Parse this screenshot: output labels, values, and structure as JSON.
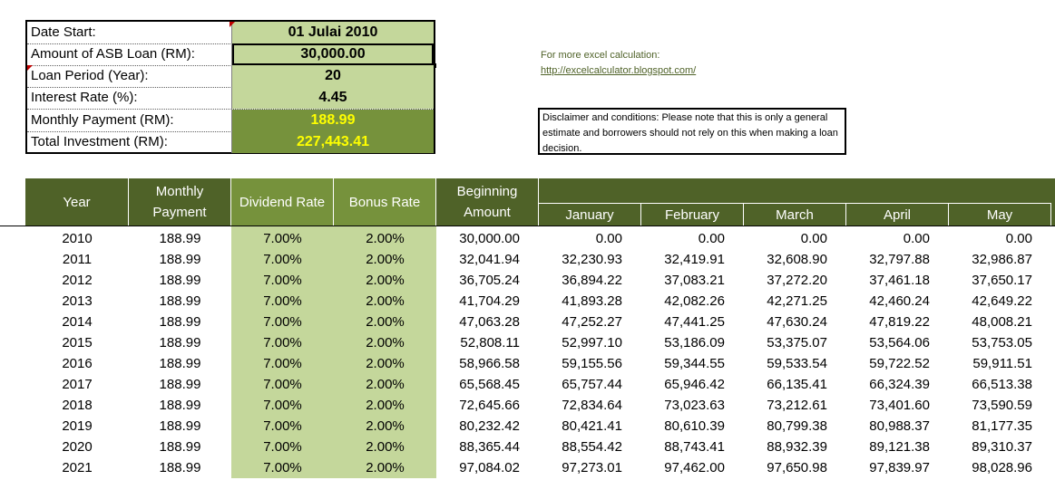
{
  "inputs": [
    {
      "label": "Date Start:",
      "value": "01 Julai 2010"
    },
    {
      "label": "Amount of ASB Loan (RM):",
      "value": "30,000.00"
    },
    {
      "label": "Loan Period (Year):",
      "value": "20"
    },
    {
      "label": "Interest Rate (%):",
      "value": "4.45"
    },
    {
      "label": "Monthly Payment (RM):",
      "value": "188.99"
    },
    {
      "label": "Total Investment (RM):",
      "value": "227,443.41"
    }
  ],
  "info": {
    "line1": "For more excel calculation:",
    "link": "http://excelcalculator.blogspot.com/",
    "disclaimer": "Disclaimer and conditions: Please note that this is only a general estimate and borrowers should not rely on this when making a loan decision."
  },
  "table": {
    "headers": {
      "year": "Year",
      "monthly_payment": "Monthly Payment",
      "dividend_rate": "Dividend Rate",
      "bonus_rate": "Bonus Rate",
      "beginning_amount": "Beginning Amount"
    },
    "months": [
      "January",
      "February",
      "March",
      "April",
      "May"
    ],
    "rows": [
      [
        "2010",
        "188.99",
        "7.00%",
        "2.00%",
        "30,000.00",
        "0.00",
        "0.00",
        "0.00",
        "0.00",
        "0.00"
      ],
      [
        "2011",
        "188.99",
        "7.00%",
        "2.00%",
        "32,041.94",
        "32,230.93",
        "32,419.91",
        "32,608.90",
        "32,797.88",
        "32,986.87"
      ],
      [
        "2012",
        "188.99",
        "7.00%",
        "2.00%",
        "36,705.24",
        "36,894.22",
        "37,083.21",
        "37,272.20",
        "37,461.18",
        "37,650.17"
      ],
      [
        "2013",
        "188.99",
        "7.00%",
        "2.00%",
        "41,704.29",
        "41,893.28",
        "42,082.26",
        "42,271.25",
        "42,460.24",
        "42,649.22"
      ],
      [
        "2014",
        "188.99",
        "7.00%",
        "2.00%",
        "47,063.28",
        "47,252.27",
        "47,441.25",
        "47,630.24",
        "47,819.22",
        "48,008.21"
      ],
      [
        "2015",
        "188.99",
        "7.00%",
        "2.00%",
        "52,808.11",
        "52,997.10",
        "53,186.09",
        "53,375.07",
        "53,564.06",
        "53,753.05"
      ],
      [
        "2016",
        "188.99",
        "7.00%",
        "2.00%",
        "58,966.58",
        "59,155.56",
        "59,344.55",
        "59,533.54",
        "59,722.52",
        "59,911.51"
      ],
      [
        "2017",
        "188.99",
        "7.00%",
        "2.00%",
        "65,568.45",
        "65,757.44",
        "65,946.42",
        "66,135.41",
        "66,324.39",
        "66,513.38"
      ],
      [
        "2018",
        "188.99",
        "7.00%",
        "2.00%",
        "72,645.66",
        "72,834.64",
        "73,023.63",
        "73,212.61",
        "73,401.60",
        "73,590.59"
      ],
      [
        "2019",
        "188.99",
        "7.00%",
        "2.00%",
        "80,232.42",
        "80,421.41",
        "80,610.39",
        "80,799.38",
        "80,988.37",
        "81,177.35"
      ],
      [
        "2020",
        "188.99",
        "7.00%",
        "2.00%",
        "88,365.44",
        "88,554.42",
        "88,743.41",
        "88,932.39",
        "89,121.38",
        "89,310.37"
      ],
      [
        "2021",
        "188.99",
        "7.00%",
        "2.00%",
        "97,084.02",
        "97,273.01",
        "97,462.00",
        "97,650.98",
        "97,839.97",
        "98,028.96"
      ]
    ]
  },
  "colors": {
    "header_dark": "#4f6228",
    "header_mid": "#76923c",
    "light_green": "#c4d79b",
    "highlight_text": "#ffff00"
  }
}
